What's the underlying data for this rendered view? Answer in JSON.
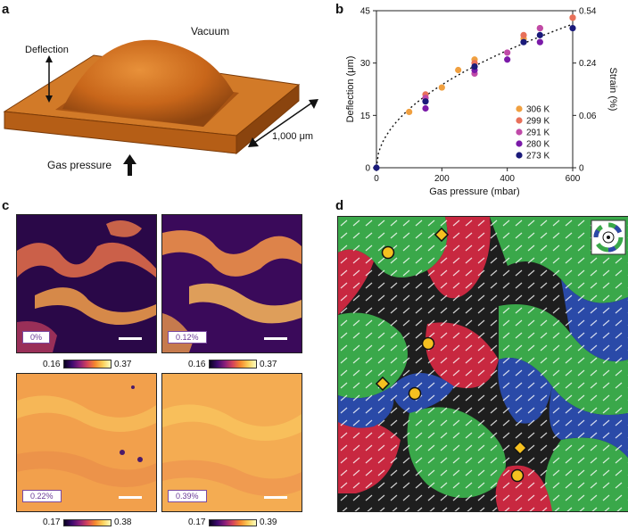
{
  "panels": {
    "a": {
      "label": "a",
      "vacuum": "Vacuum",
      "deflection": "Deflection",
      "size": "1,000 μm",
      "gas_pressure": "Gas pressure"
    },
    "b": {
      "label": "b"
    },
    "c": {
      "label": "c",
      "maps": [
        {
          "strain_label": "0%",
          "cmin": "0.16",
          "cmax": "0.37"
        },
        {
          "strain_label": "0.12%",
          "cmin": "0.16",
          "cmax": "0.37"
        },
        {
          "strain_label": "0.22%",
          "cmin": "0.17",
          "cmax": "0.38"
        },
        {
          "strain_label": "0.39%",
          "cmin": "0.17",
          "cmax": "0.39"
        }
      ]
    },
    "d": {
      "label": "d"
    }
  },
  "chart_data": {
    "type": "scatter",
    "xlabel": "Gas pressure (mbar)",
    "ylabel": "Deflection (μm)",
    "ylabel_right": "Strain (%)",
    "xlim": [
      0,
      600
    ],
    "ylim": [
      0,
      45
    ],
    "xticks": [
      "0",
      "200",
      "400",
      "600"
    ],
    "yticks": [
      "0",
      "15",
      "30",
      "45"
    ],
    "yticks_right": [
      "0",
      "0.06",
      "0.24",
      "0.54"
    ],
    "legend_position": "bottom-right",
    "fit": "dotted black square-root fit",
    "series": [
      {
        "name": "306 K",
        "color": "#f0a040",
        "points": [
          [
            100,
            16
          ],
          [
            200,
            23
          ],
          [
            250,
            28
          ],
          [
            300,
            31
          ],
          [
            450,
            37
          ],
          [
            600,
            43
          ]
        ]
      },
      {
        "name": "299 K",
        "color": "#e8705a",
        "points": [
          [
            150,
            21
          ],
          [
            300,
            30
          ],
          [
            450,
            38
          ],
          [
            500,
            40
          ],
          [
            600,
            43
          ]
        ]
      },
      {
        "name": "291 K",
        "color": "#c04aa8",
        "points": [
          [
            150,
            20
          ],
          [
            300,
            27
          ],
          [
            400,
            33
          ],
          [
            500,
            40
          ]
        ]
      },
      {
        "name": "280 K",
        "color": "#7a1aa8",
        "points": [
          [
            150,
            17
          ],
          [
            300,
            28
          ],
          [
            400,
            31
          ],
          [
            500,
            36
          ]
        ]
      },
      {
        "name": "273 K",
        "color": "#1a1a7a",
        "points": [
          [
            0,
            0
          ],
          [
            150,
            19
          ],
          [
            300,
            29
          ],
          [
            450,
            36
          ],
          [
            500,
            38
          ],
          [
            600,
            40
          ]
        ]
      }
    ]
  }
}
